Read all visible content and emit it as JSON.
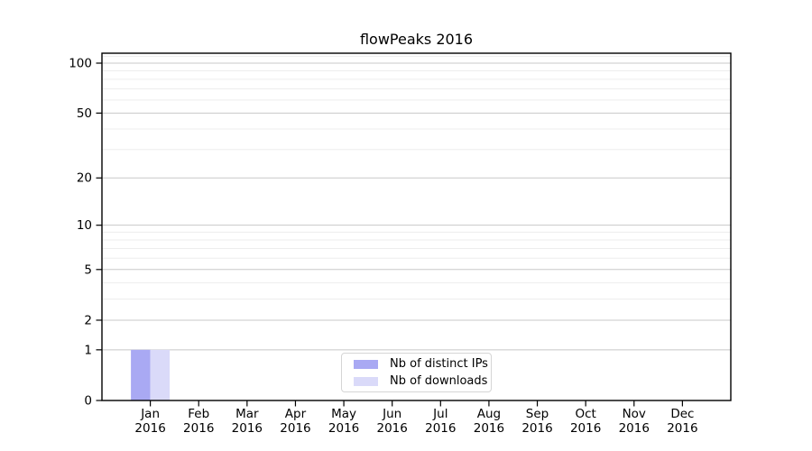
{
  "chart_data": {
    "type": "bar",
    "title": "flowPeaks 2016",
    "categories": [
      "Jan",
      "Feb",
      "Mar",
      "Apr",
      "May",
      "Jun",
      "Jul",
      "Aug",
      "Sep",
      "Oct",
      "Nov",
      "Dec"
    ],
    "category_year": "2016",
    "series": [
      {
        "name": "Nb of distinct IPs",
        "color": "#a9a9f3",
        "values": [
          1,
          0,
          0,
          0,
          0,
          0,
          0,
          0,
          0,
          0,
          0,
          0
        ]
      },
      {
        "name": "Nb of downloads",
        "color": "#dadaf9",
        "values": [
          1,
          0,
          0,
          0,
          0,
          0,
          0,
          0,
          0,
          0,
          0,
          0
        ]
      }
    ],
    "xlabel": "",
    "ylabel": "",
    "y_scale": "log1p",
    "ylim": [
      0,
      115
    ],
    "y_ticks_major": [
      0,
      1,
      2,
      5,
      10,
      20,
      50,
      100
    ],
    "y_gridlines_minor": [
      3,
      4,
      6,
      7,
      8,
      9,
      30,
      40,
      60,
      70,
      80,
      90,
      110
    ],
    "grid": "horizontal",
    "legend_position": "lower center"
  },
  "styles": {
    "background": "#ffffff",
    "text_color": "#000000",
    "spine_color": "#000000",
    "grid_major_color": "#c8c8c8",
    "grid_minor_color": "#ededed",
    "legend_border_color": "#d5d5d5",
    "legend_bg_color": "#ffffff"
  }
}
